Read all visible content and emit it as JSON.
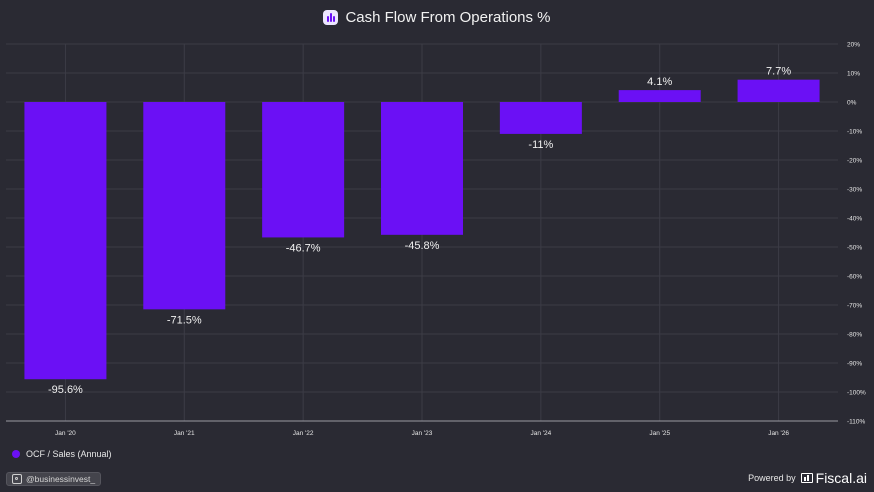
{
  "chart_data": {
    "type": "bar",
    "title": "Cash Flow From Operations %",
    "categories": [
      "Jan '20",
      "Jan '21",
      "Jan '22",
      "Jan '23",
      "Jan '24",
      "Jan '25",
      "Jan '26"
    ],
    "series": [
      {
        "name": "OCF / Sales (Annual)",
        "values": [
          -95.6,
          -71.5,
          -46.7,
          -45.8,
          -11,
          4.1,
          7.7
        ],
        "labels": [
          "-95.6%",
          "-71.5%",
          "-46.7%",
          "-45.8%",
          "-11%",
          "4.1%",
          "7.7%"
        ],
        "color": "#6b10f5"
      }
    ],
    "ylim": [
      -110,
      20
    ],
    "y_ticks": [
      20,
      10,
      0,
      -10,
      -20,
      -30,
      -40,
      -50,
      -60,
      -70,
      -80,
      -90,
      -100,
      -110
    ],
    "y_tick_labels": [
      "20%",
      "10%",
      "0%",
      "-10%",
      "-20%",
      "-30%",
      "-40%",
      "-50%",
      "-60%",
      "-70%",
      "-80%",
      "-90%",
      "-100%",
      "-110%"
    ],
    "y_axis_side": "right",
    "grid": true,
    "legend_position": "bottom-left"
  },
  "footer": {
    "handle": "@businessinvest_",
    "powered_by": "Powered by",
    "brand": "Fiscal.ai"
  },
  "colors": {
    "background": "#2a2a33",
    "bar": "#6b10f5",
    "grid": "#3c3c46"
  },
  "icons": {
    "title": "chart-logo-icon",
    "handle": "instagram-icon",
    "brand": "fiscal-logo-icon"
  }
}
